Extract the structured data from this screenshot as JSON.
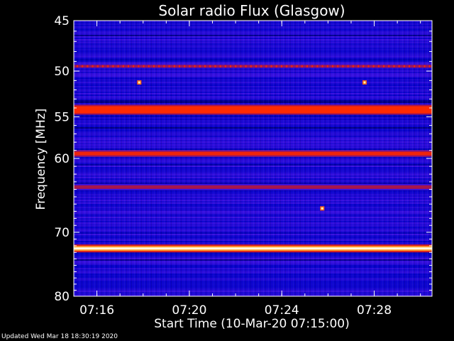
{
  "chart_data": {
    "type": "heatmap",
    "title": "Solar radio Flux (Glasgow)",
    "ylabel": "Frequency [MHz]",
    "xlabel": "Start Time (10-Mar-20 07:15:00)",
    "xlim": [
      "07:15:00",
      "07:30:30"
    ],
    "ylim": [
      45,
      80
    ],
    "y_scale": "log",
    "x_ticks": [
      "07:16",
      "07:20",
      "07:24",
      "07:28"
    ],
    "y_ticks": [
      45,
      50,
      55,
      60,
      70,
      80
    ],
    "grid": false,
    "colormap": [
      "#00002a",
      "#0000c8",
      "#3a10e0",
      "#c0182a",
      "#ff2a00",
      "#ffd040",
      "#ffffe0"
    ],
    "emission_bands": [
      {
        "frequency_mhz": 49.5,
        "intensity": 0.55,
        "style": "dotted"
      },
      {
        "frequency_mhz": 54.2,
        "intensity": 0.85,
        "style": "band"
      },
      {
        "frequency_mhz": 59.4,
        "intensity": 0.8,
        "style": "band"
      },
      {
        "frequency_mhz": 63.7,
        "intensity": 0.6,
        "style": "band"
      },
      {
        "frequency_mhz": 72.4,
        "intensity": 1.0,
        "style": "band"
      }
    ],
    "spots": [
      {
        "time": "07:17:50",
        "frequency_mhz": 51.2
      },
      {
        "time": "07:27:35",
        "frequency_mhz": 51.2
      },
      {
        "time": "07:25:45",
        "frequency_mhz": 66.6
      }
    ]
  },
  "footer": "Updated Wed Mar 18 18:30:19 2020"
}
